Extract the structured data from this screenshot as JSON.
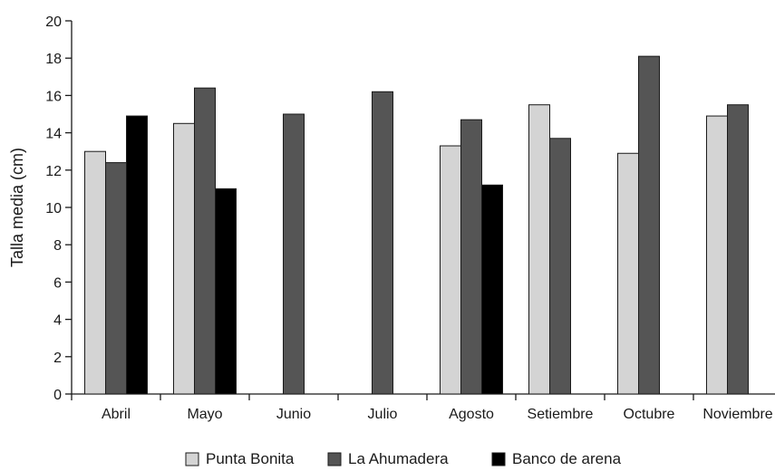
{
  "chart_data": {
    "type": "bar",
    "ylabel": "Talla media (cm)",
    "xlabel": "",
    "ylim": [
      0,
      20
    ],
    "yticks": [
      "0",
      "2",
      "4",
      "6",
      "8",
      "10",
      "12",
      "14",
      "16",
      "18",
      "20"
    ],
    "grid": false,
    "legend_position": "bottom",
    "categories": [
      "Abril",
      "Mayo",
      "Junio",
      "Julio",
      "Agosto",
      "Setiembre",
      "Octubre",
      "Noviembre"
    ],
    "series": [
      {
        "name": "Punta Bonita",
        "color": "#d4d4d4",
        "values": [
          13.0,
          14.5,
          null,
          null,
          13.3,
          15.5,
          12.9,
          14.9
        ]
      },
      {
        "name": "La Ahumadera",
        "color": "#555555",
        "values": [
          12.4,
          16.4,
          15.0,
          16.2,
          14.7,
          13.7,
          18.1,
          15.5
        ]
      },
      {
        "name": "Banco de arena",
        "color": "#000000",
        "values": [
          14.9,
          11.0,
          null,
          null,
          11.2,
          null,
          null,
          null
        ]
      }
    ]
  }
}
